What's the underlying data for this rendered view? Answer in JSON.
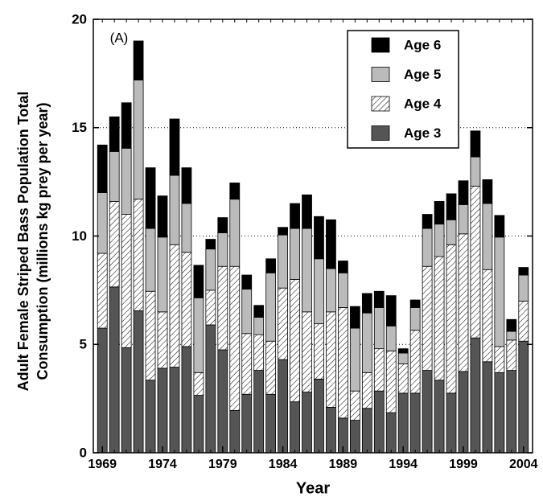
{
  "chart_data": {
    "type": "stacked_bar",
    "annotation": "(A)",
    "xlabel": "Year",
    "ylabel": [
      "Adult Female Striped Bass Population Total",
      "Consumption (millions kg prey per year)"
    ],
    "x": [
      1969,
      1970,
      1971,
      1972,
      1973,
      1974,
      1975,
      1976,
      1977,
      1978,
      1979,
      1980,
      1981,
      1982,
      1983,
      1984,
      1985,
      1986,
      1987,
      1988,
      1989,
      1990,
      1991,
      1992,
      1993,
      1994,
      1995,
      1996,
      1997,
      1998,
      1999,
      2000,
      2001,
      2002,
      2003,
      2004
    ],
    "xlim": [
      1968.25,
      2004.75
    ],
    "xticks": [
      1969,
      1974,
      1979,
      1984,
      1989,
      1994,
      1999,
      2004
    ],
    "ylim": [
      0,
      20
    ],
    "yticks": [
      0,
      5,
      10,
      15,
      20
    ],
    "grid": true,
    "legend": "upper right",
    "series": [
      {
        "name": "Age 3",
        "color": "#555555",
        "hatch": false,
        "values": [
          5.75,
          7.65,
          4.85,
          6.55,
          3.35,
          3.9,
          3.95,
          4.9,
          2.65,
          5.9,
          4.75,
          1.95,
          2.7,
          3.8,
          2.7,
          4.3,
          2.35,
          2.8,
          3.4,
          2.1,
          1.6,
          1.5,
          2.05,
          2.85,
          1.85,
          2.75,
          2.75,
          3.8,
          3.35,
          2.75,
          3.75,
          5.3,
          4.2,
          3.7,
          3.8,
          5.15
        ]
      },
      {
        "name": "Age 4",
        "color": "#ffffff",
        "hatch": true,
        "values": [
          3.45,
          3.95,
          6.15,
          5.15,
          4.1,
          2.6,
          5.65,
          4.35,
          1.05,
          1.6,
          3.85,
          6.65,
          2.8,
          1.65,
          2.45,
          3.3,
          5.65,
          3.7,
          2.55,
          4.4,
          5.1,
          1.35,
          1.65,
          1.95,
          2.85,
          1.35,
          2.9,
          4.8,
          5.7,
          6.85,
          6.35,
          7.0,
          4.25,
          1.2,
          1.4,
          1.85
        ]
      },
      {
        "name": "Age 5",
        "color": "#bbbbbb",
        "hatch": false,
        "values": [
          2.8,
          2.3,
          3.05,
          5.5,
          2.9,
          3.45,
          3.2,
          2.25,
          3.45,
          1.9,
          1.55,
          3.1,
          2.05,
          0.8,
          3.15,
          2.45,
          2.35,
          3.85,
          3.0,
          2.0,
          1.6,
          2.9,
          2.75,
          1.9,
          1.15,
          0.5,
          1.05,
          1.75,
          1.5,
          1.15,
          1.35,
          1.35,
          3.05,
          5.05,
          0.4,
          1.2
        ]
      },
      {
        "name": "Age 6",
        "color": "#000000",
        "hatch": false,
        "values": [
          2.2,
          1.6,
          2.1,
          1.8,
          2.8,
          1.9,
          2.6,
          1.65,
          1.5,
          0.45,
          0.7,
          0.75,
          0.65,
          0.55,
          0.65,
          0.35,
          1.15,
          1.55,
          1.95,
          2.25,
          0.55,
          1.0,
          0.9,
          0.75,
          1.4,
          0.2,
          0.35,
          0.65,
          1.05,
          1.2,
          1.1,
          1.2,
          1.1,
          1.0,
          0.55,
          0.35
        ]
      }
    ]
  }
}
